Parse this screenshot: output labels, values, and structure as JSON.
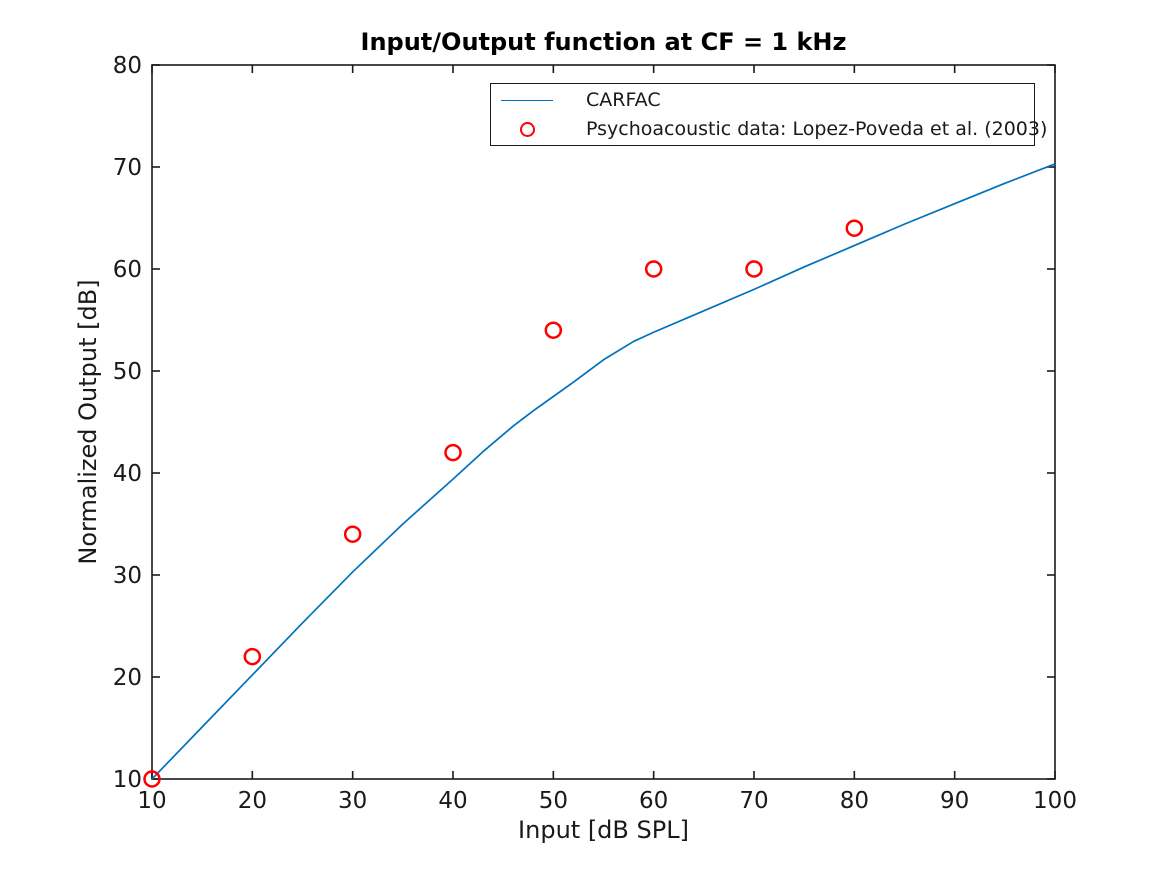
{
  "chart_data": {
    "type": "line",
    "title": "Input/Output function at CF = 1 kHz",
    "xlabel": "Input [dB SPL]",
    "ylabel": "Normalized Output [dB]",
    "xlim": [
      10,
      100
    ],
    "ylim": [
      10,
      80
    ],
    "xticks": [
      10,
      20,
      30,
      40,
      50,
      60,
      70,
      80,
      90,
      100
    ],
    "yticks": [
      10,
      20,
      30,
      40,
      50,
      60,
      70,
      80
    ],
    "grid": false,
    "box": true,
    "tick_direction": "in",
    "legend_position": "upper center inside",
    "axes_color": "#1a1a1a",
    "series": [
      {
        "name": "CARFAC",
        "type": "line",
        "color": "#0072BD",
        "x": [
          10,
          15,
          20,
          25,
          30,
          35,
          40,
          43,
          46,
          48,
          50,
          52,
          55,
          58,
          60,
          65,
          70,
          75,
          80,
          85,
          90,
          95,
          100
        ],
        "y": [
          10,
          15.1,
          20.2,
          25.3,
          30.3,
          35.0,
          39.4,
          42.1,
          44.6,
          46.1,
          47.5,
          48.9,
          51.1,
          52.9,
          53.8,
          55.9,
          58.0,
          60.2,
          62.3,
          64.4,
          66.4,
          68.4,
          70.3
        ]
      },
      {
        "name": "Psychoacoustic data: Lopez-Poveda et al. (2003)",
        "type": "scatter",
        "marker": "open-circle",
        "color": "#FF0000",
        "x": [
          10,
          20,
          30,
          40,
          50,
          60,
          70,
          80
        ],
        "y": [
          10,
          22,
          34,
          42,
          54,
          60,
          60,
          64
        ]
      }
    ]
  },
  "legend": {
    "items": [
      {
        "label": "CARFAC",
        "swatch": "line",
        "color": "#0072BD"
      },
      {
        "label": "Psychoacoustic data: Lopez-Poveda et al. (2003)",
        "swatch": "open-circle",
        "color": "#FF0000"
      }
    ]
  }
}
